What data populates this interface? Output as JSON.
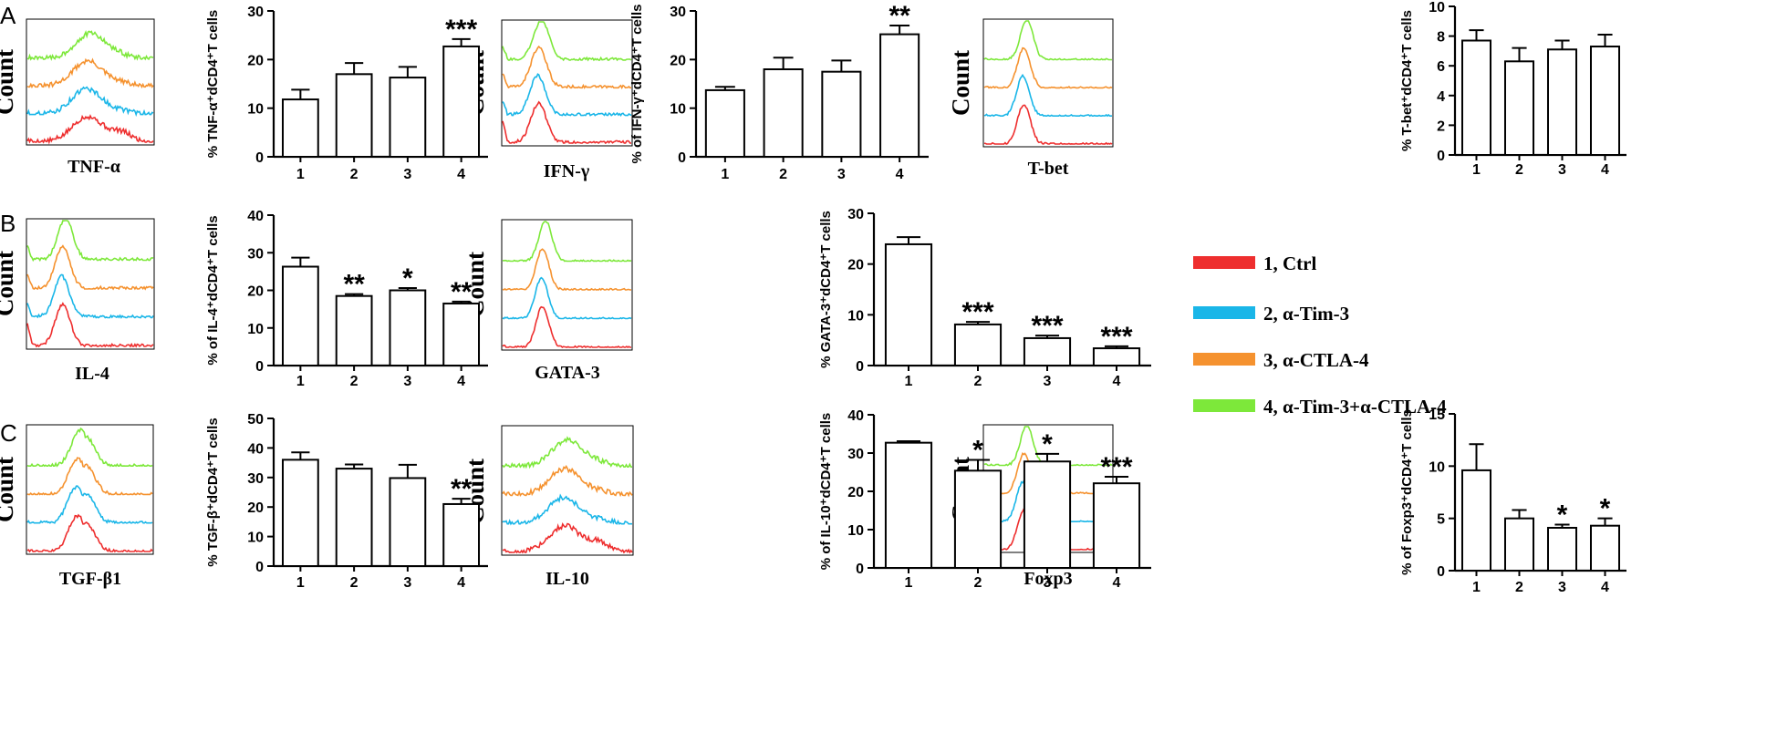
{
  "colors": {
    "ctrl": "#ee2e2e",
    "tim3": "#1ab6e8",
    "ctla4": "#f5922f",
    "combo": "#7de83a",
    "axis": "#000000",
    "bar_fill": "#ffffff"
  },
  "panel_letters": [
    "A",
    "B",
    "C"
  ],
  "count_label": "Count",
  "legend": [
    {
      "label": "1, Ctrl",
      "color_key": "ctrl"
    },
    {
      "label": "2, α-Tim-3",
      "color_key": "tim3"
    },
    {
      "label": "3, α-CTLA-4",
      "color_key": "ctla4"
    },
    {
      "label": "4, α-Tim-3+α-CTLA-4",
      "color_key": "combo"
    }
  ],
  "histograms": [
    {
      "id": "tnf",
      "marker": "TNF-α",
      "shape": "broad"
    },
    {
      "id": "ifn",
      "marker": "IFN-γ",
      "shape": "sharp-left"
    },
    {
      "id": "tbet",
      "marker": "T-bet",
      "shape": "sharp"
    },
    {
      "id": "il4",
      "marker": "IL-4",
      "shape": "sharp-left"
    },
    {
      "id": "gata3",
      "marker": "GATA-3",
      "shape": "sharp"
    },
    {
      "id": "tgfb1",
      "marker": "TGF-β1",
      "shape": "double"
    },
    {
      "id": "il10",
      "marker": "IL-10",
      "shape": "broad"
    },
    {
      "id": "foxp3",
      "marker": "Foxp3",
      "shape": "sharp"
    }
  ],
  "chart_data": [
    {
      "id": "tnf",
      "type": "bar",
      "categories": [
        "1",
        "2",
        "3",
        "4"
      ],
      "values": [
        11.8,
        17.0,
        16.3,
        22.7
      ],
      "errors": [
        2.0,
        2.3,
        2.2,
        1.5
      ],
      "significance": [
        "",
        "",
        "",
        "***"
      ],
      "ylim": [
        0,
        30
      ],
      "yticks": [
        0,
        10,
        20,
        30
      ],
      "ylabel": "% TNF-α⁺dCD4⁺T cells"
    },
    {
      "id": "ifn",
      "type": "bar",
      "categories": [
        "1",
        "2",
        "3",
        "4"
      ],
      "values": [
        13.7,
        18.0,
        17.5,
        25.2
      ],
      "errors": [
        0.7,
        2.4,
        2.3,
        1.8
      ],
      "significance": [
        "",
        "",
        "",
        "**"
      ],
      "ylim": [
        0,
        30
      ],
      "yticks": [
        0,
        10,
        20,
        30
      ],
      "ylabel": "% of IFN-γ⁺dCD4⁺T cells"
    },
    {
      "id": "tbet",
      "type": "bar",
      "categories": [
        "1",
        "2",
        "3",
        "4"
      ],
      "values": [
        7.7,
        6.3,
        7.1,
        7.3
      ],
      "errors": [
        0.7,
        0.9,
        0.6,
        0.8
      ],
      "significance": [
        "",
        "",
        "",
        ""
      ],
      "ylim": [
        0,
        10
      ],
      "yticks": [
        0,
        2,
        4,
        6,
        8,
        10
      ],
      "ylabel": "% T-bet⁺dCD4⁺T cells"
    },
    {
      "id": "il4",
      "type": "bar",
      "categories": [
        "1",
        "2",
        "3",
        "4"
      ],
      "values": [
        26.3,
        18.5,
        20.0,
        16.5
      ],
      "errors": [
        2.4,
        0.5,
        0.6,
        0.5
      ],
      "significance": [
        "",
        "**",
        "*",
        "**"
      ],
      "ylim": [
        0,
        40
      ],
      "yticks": [
        0,
        10,
        20,
        30,
        40
      ],
      "ylabel": "% of IL-4⁺dCD4⁺T cells"
    },
    {
      "id": "gata3",
      "type": "bar",
      "categories": [
        "1",
        "2",
        "3",
        "4"
      ],
      "values": [
        23.9,
        8.1,
        5.4,
        3.4
      ],
      "errors": [
        1.4,
        0.5,
        0.5,
        0.4
      ],
      "significance": [
        "",
        "***",
        "***",
        "***"
      ],
      "ylim": [
        0,
        30
      ],
      "yticks": [
        0,
        10,
        20,
        30
      ],
      "ylabel": "% GATA-3⁺dCD4⁺T cells"
    },
    {
      "id": "tgfb1",
      "type": "bar",
      "categories": [
        "1",
        "2",
        "3",
        "4"
      ],
      "values": [
        36.0,
        33.0,
        29.8,
        21.0
      ],
      "errors": [
        2.5,
        1.4,
        4.5,
        1.8
      ],
      "significance": [
        "",
        "",
        "",
        "**"
      ],
      "ylim": [
        0,
        50
      ],
      "yticks": [
        0,
        10,
        20,
        30,
        40,
        50
      ],
      "ylabel": "% TGF-β⁺dCD4⁺T cells"
    },
    {
      "id": "il10",
      "type": "bar",
      "categories": [
        "1",
        "2",
        "3",
        "4"
      ],
      "values": [
        32.7,
        25.4,
        27.8,
        22.1
      ],
      "errors": [
        0.4,
        2.8,
        2.0,
        1.7
      ],
      "significance": [
        "",
        "*",
        "*",
        "***"
      ],
      "ylim": [
        0,
        40
      ],
      "yticks": [
        0,
        10,
        20,
        30,
        40
      ],
      "ylabel": "% of IL-10⁺dCD4⁺T cells"
    },
    {
      "id": "foxp3",
      "type": "bar",
      "categories": [
        "1",
        "2",
        "3",
        "4"
      ],
      "values": [
        9.6,
        5.0,
        4.1,
        4.3
      ],
      "errors": [
        2.5,
        0.8,
        0.3,
        0.7
      ],
      "significance": [
        "",
        "",
        "*",
        "*"
      ],
      "ylim": [
        0,
        15
      ],
      "yticks": [
        0,
        5,
        10,
        15
      ],
      "ylabel": "% of Foxp3⁺dCD4⁺T cells"
    }
  ]
}
